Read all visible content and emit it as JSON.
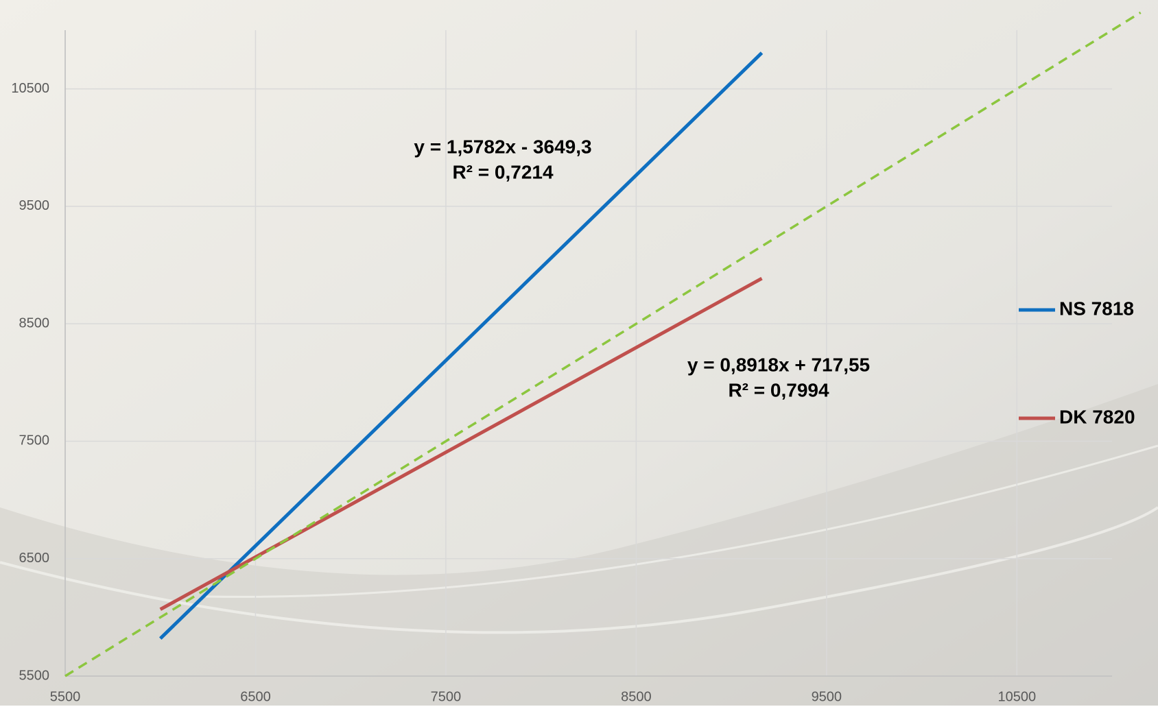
{
  "chart_data": {
    "type": "line",
    "xlim": [
      5500,
      11000
    ],
    "ylim": [
      5500,
      11000
    ],
    "xticks": [
      5500,
      6500,
      7500,
      8500,
      9500,
      10500
    ],
    "yticks": [
      5500,
      6500,
      7500,
      8500,
      9500,
      10500
    ],
    "grid": true,
    "legend": "right",
    "series": [
      {
        "name": "NS 7818",
        "color": "#0f6fc0",
        "x": [
          6000,
          9160
        ],
        "values": [
          5820,
          10807
        ]
      },
      {
        "name": "DK 7820",
        "color": "#c0504d",
        "x": [
          6000,
          9160
        ],
        "values": [
          6068,
          8886
        ]
      },
      {
        "color": "#8cc63f",
        "dash": true,
        "x": [
          5500,
          11150
        ],
        "values": [
          5500,
          11150
        ]
      }
    ],
    "annotations": [
      [
        "y = 1,5782x - 3649,3",
        "R² = 0,7214"
      ],
      [
        "y = 0,8918x + 717,55",
        "R² = 0,7994"
      ]
    ]
  }
}
